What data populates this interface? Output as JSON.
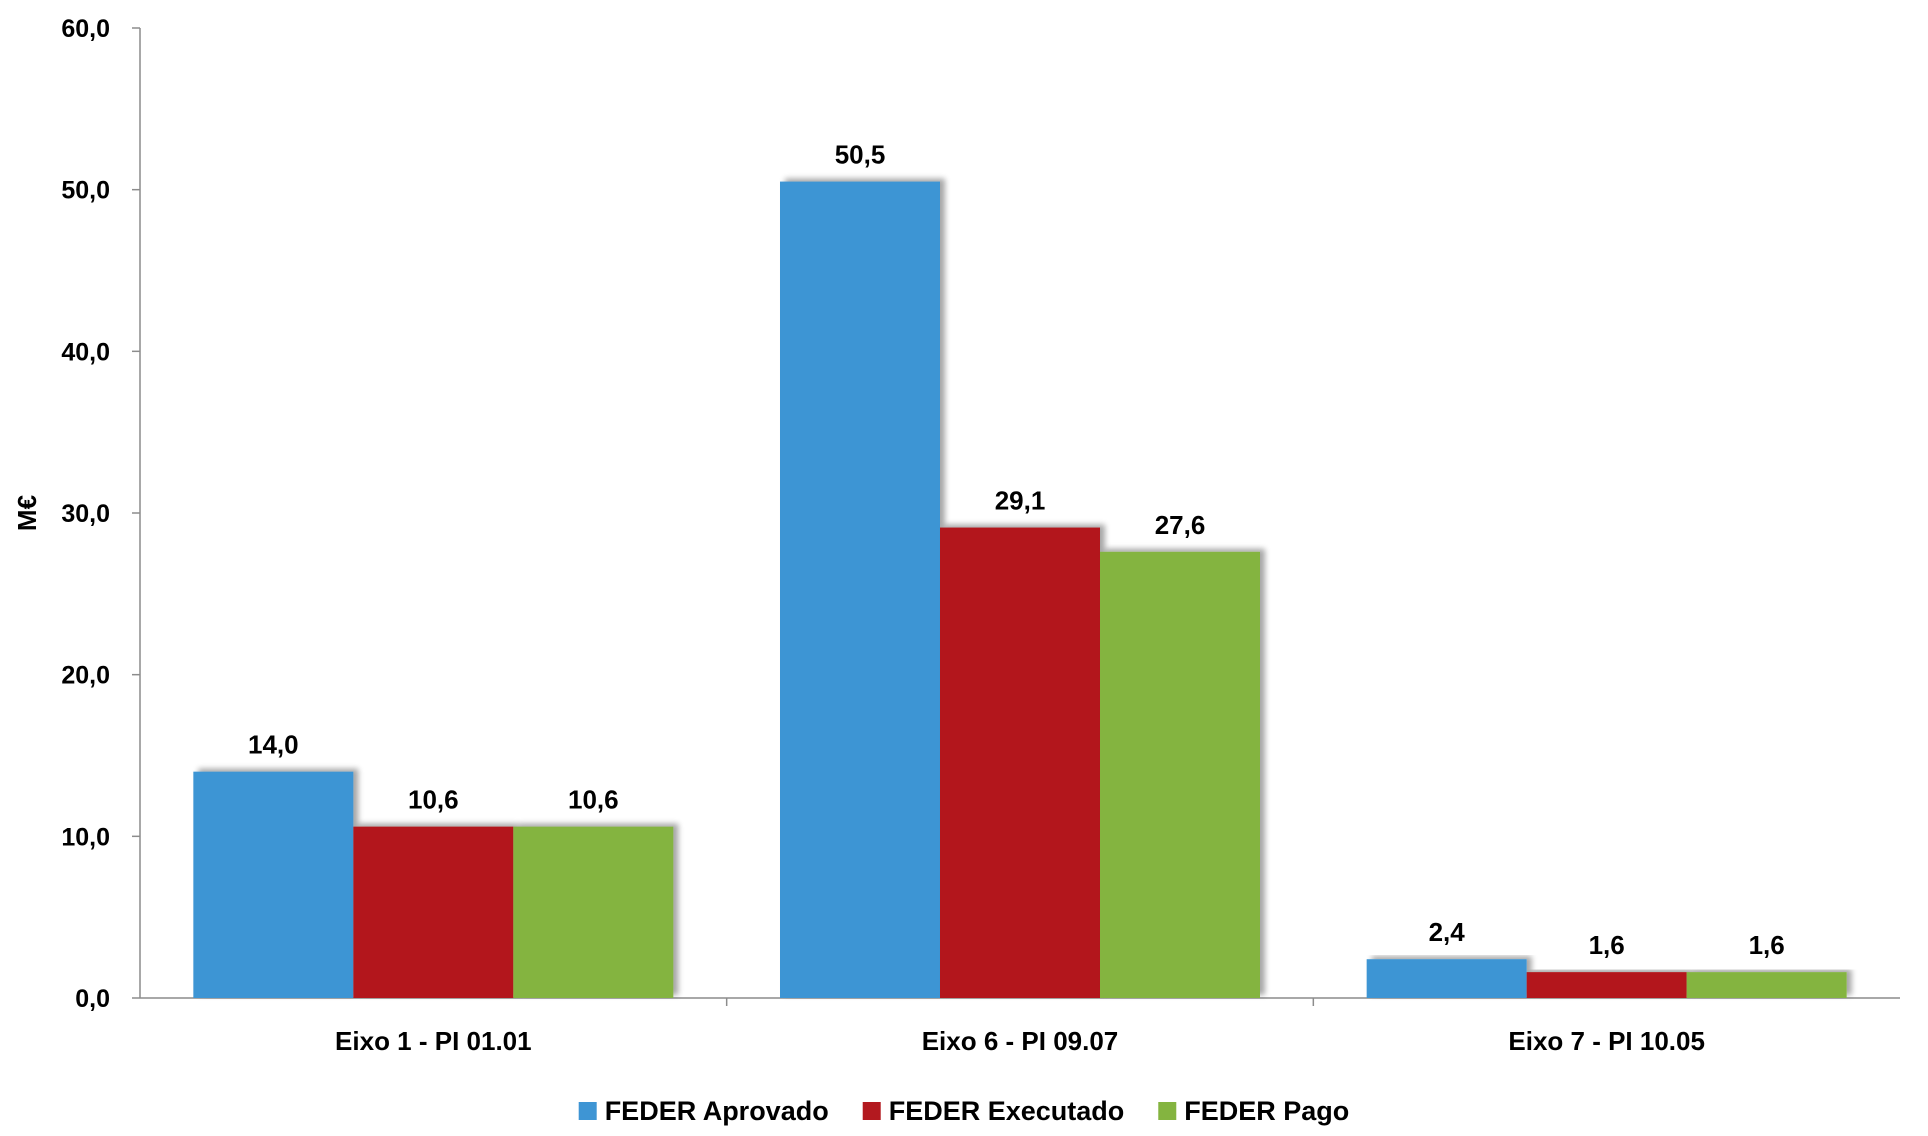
{
  "chart_data": {
    "type": "bar",
    "categories": [
      "Eixo 1 - PI 01.01",
      "Eixo 6 - PI 09.07",
      "Eixo 7 - PI 10.05"
    ],
    "series": [
      {
        "name": "FEDER Aprovado",
        "color": "#3E95D4",
        "values": [
          14.0,
          50.5,
          2.4
        ],
        "labels": [
          "14,0",
          "50,5",
          "2,4"
        ]
      },
      {
        "name": "FEDER Executado",
        "color": "#B3191F",
        "values": [
          10.6,
          29.1,
          1.6
        ],
        "labels": [
          "10,6",
          "29,1",
          "1,6"
        ]
      },
      {
        "name": "FEDER Pago",
        "color": "#84B440",
        "values": [
          10.6,
          27.6,
          1.6
        ],
        "labels": [
          "10,6",
          "27,6",
          "1,6"
        ]
      }
    ],
    "ylabel": "M€",
    "ylim": [
      0,
      60
    ],
    "yticks": [
      0,
      10,
      20,
      30,
      40,
      50,
      60
    ],
    "ytick_labels": [
      "0,0",
      "10,0",
      "20,0",
      "30,0",
      "40,0",
      "50,0",
      "60,0"
    ],
    "grid": false,
    "legend_position": "bottom-center"
  }
}
